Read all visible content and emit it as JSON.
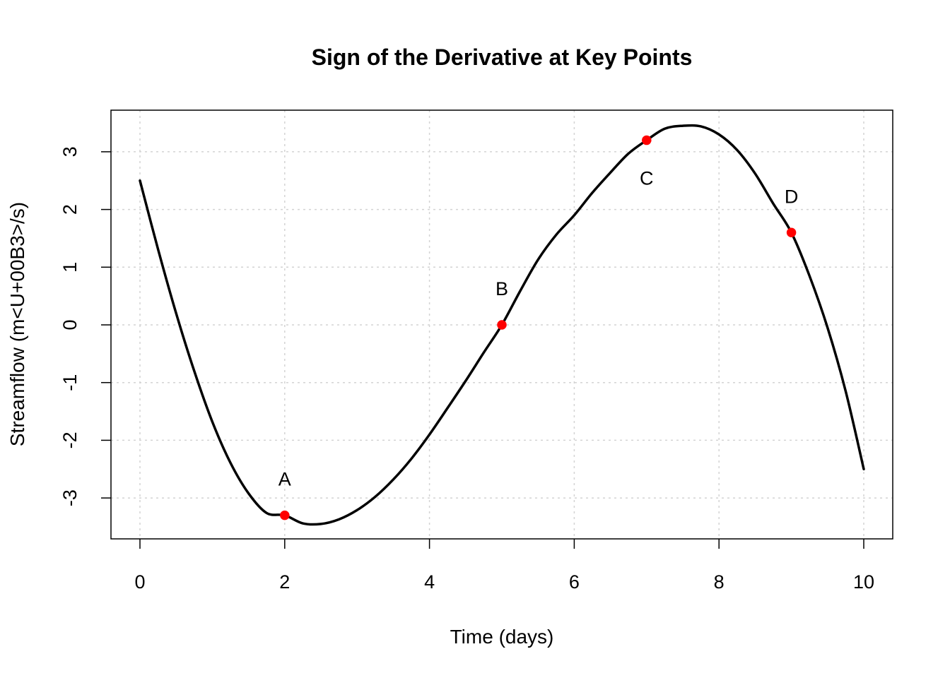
{
  "chart_data": {
    "type": "line",
    "title": "Sign of the Derivative at Key Points",
    "xlabel": "Time (days)",
    "ylabel": "Streamflow (m<U+00B3>/s)",
    "xlim": [
      0,
      10
    ],
    "ylim": [
      -3.55,
      3.55
    ],
    "x_ticks": [
      0,
      2,
      4,
      6,
      8,
      10
    ],
    "y_ticks": [
      -3,
      -2,
      -1,
      0,
      1,
      2,
      3
    ],
    "grid": true,
    "series": [
      {
        "color": "#000000",
        "x": [
          0,
          0.25,
          0.5,
          0.75,
          1,
          1.25,
          1.5,
          1.75,
          2,
          2.25,
          2.5,
          2.75,
          3,
          3.25,
          3.5,
          3.75,
          4,
          4.25,
          4.5,
          4.75,
          5,
          5.25,
          5.5,
          5.75,
          6,
          6.25,
          6.5,
          6.75,
          7,
          7.25,
          7.5,
          7.75,
          8,
          8.25,
          8.5,
          8.75,
          9,
          9.25,
          9.5,
          9.75,
          10
        ],
        "y": [
          2.5,
          1.31,
          0.2,
          -0.8,
          -1.68,
          -2.39,
          -2.92,
          -3.26,
          -3.3,
          -3.44,
          -3.45,
          -3.37,
          -3.21,
          -2.98,
          -2.68,
          -2.32,
          -1.9,
          -1.44,
          -0.97,
          -0.48,
          0.0,
          0.58,
          1.13,
          1.56,
          1.9,
          2.29,
          2.64,
          2.97,
          3.2,
          3.4,
          3.45,
          3.44,
          3.3,
          3.03,
          2.62,
          2.1,
          1.6,
          0.85,
          -0.05,
          -1.15,
          -2.5
        ]
      }
    ],
    "points": [
      {
        "label": "A",
        "x": 2,
        "y": -3.3,
        "label_side": "above",
        "color": "#ff0000"
      },
      {
        "label": "B",
        "x": 5,
        "y": 0.0,
        "label_side": "above",
        "color": "#ff0000"
      },
      {
        "label": "C",
        "x": 7,
        "y": 3.2,
        "label_side": "below",
        "color": "#ff0000"
      },
      {
        "label": "D",
        "x": 9,
        "y": 1.6,
        "label_side": "above",
        "color": "#ff0000"
      }
    ]
  }
}
